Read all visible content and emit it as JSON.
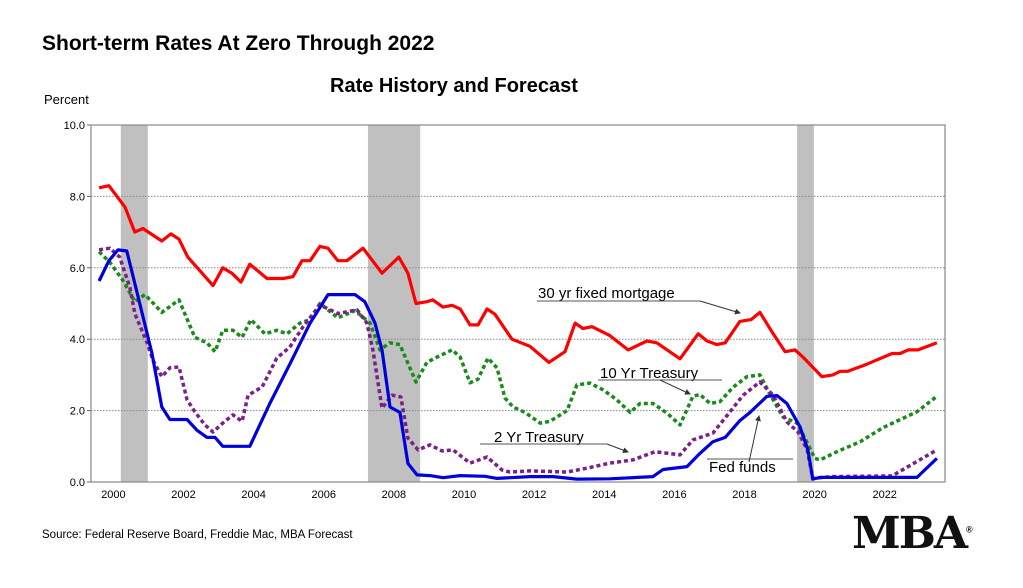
{
  "title": "Short-term Rates At Zero Through 2022",
  "subtitle": "Rate History and Forecast",
  "source": "Source: Federal Reserve Board, Freddie Mac, MBA Forecast",
  "logo": {
    "text": "MBA",
    "mark": "®"
  },
  "chart_data": {
    "type": "line",
    "title": "Rate History and Forecast",
    "ylabel": "Percent",
    "xlabel": "",
    "ylim": [
      0,
      10
    ],
    "xlim": [
      1999.86,
      2024.22
    ],
    "grid": "horizontal dotted",
    "yticks": [
      "0.0",
      "2.0",
      "4.0",
      "6.0",
      "8.0",
      "10.0"
    ],
    "xticks": [
      "2000",
      "2002",
      "2004",
      "2006",
      "2008",
      "2010",
      "2012",
      "2014",
      "2016",
      "2018",
      "2020",
      "2022"
    ],
    "recessions": [
      [
        2000.71,
        2001.48
      ],
      [
        2007.76,
        2009.25
      ],
      [
        2020.0,
        2020.48
      ]
    ],
    "series": [
      {
        "name": "30 yr fixed mortgage",
        "color": "#ff0000",
        "style": "solid",
        "x": [
          2000.09,
          2000.37,
          2000.83,
          2001.11,
          2001.34,
          2001.88,
          2002.14,
          2002.37,
          2002.62,
          2003.34,
          2003.62,
          2003.88,
          2004.14,
          2004.39,
          2004.88,
          2005.34,
          2005.62,
          2005.88,
          2006.11,
          2006.39,
          2006.62,
          2006.9,
          2007.16,
          2007.62,
          2008.16,
          2008.64,
          2008.9,
          2009.13,
          2009.44,
          2009.61,
          2009.9,
          2010.16,
          2010.39,
          2010.67,
          2010.9,
          2011.16,
          2011.38,
          2011.87,
          2012.38,
          2012.92,
          2013.38,
          2013.67,
          2013.89,
          2014.15,
          2014.66,
          2015.18,
          2015.72,
          2016.0,
          2016.66,
          2017.18,
          2017.43,
          2017.72,
          2017.95,
          2018.37,
          2018.69,
          2018.94,
          2019.32,
          2019.66,
          2019.94,
          2020.17,
          2020.71,
          2021.02,
          2021.23,
          2021.45,
          2021.99,
          2022.71,
          2022.94,
          2023.17,
          2023.45,
          2023.99
        ],
        "y": [
          8.24,
          8.3,
          7.7,
          7.0,
          7.1,
          6.75,
          6.95,
          6.8,
          6.3,
          5.5,
          6.0,
          5.85,
          5.6,
          6.1,
          5.7,
          5.7,
          5.75,
          6.2,
          6.2,
          6.6,
          6.55,
          6.2,
          6.2,
          6.55,
          5.85,
          6.3,
          5.85,
          5.0,
          5.05,
          5.1,
          4.9,
          4.95,
          4.85,
          4.4,
          4.4,
          4.85,
          4.7,
          4.0,
          3.8,
          3.35,
          3.65,
          4.45,
          4.3,
          4.35,
          4.1,
          3.7,
          3.95,
          3.9,
          3.45,
          4.15,
          3.95,
          3.85,
          3.9,
          4.5,
          4.55,
          4.75,
          4.15,
          3.65,
          3.7,
          3.5,
          2.95,
          3.0,
          3.1,
          3.1,
          3.3,
          3.6,
          3.6,
          3.7,
          3.7,
          3.9
        ]
      },
      {
        "name": "10 Yr Treasury",
        "color": "#1a8a1a",
        "style": "dotted",
        "x": [
          2000.09,
          2000.4,
          2000.77,
          2001.11,
          2001.4,
          2001.88,
          2002.37,
          2002.82,
          2003.17,
          2003.4,
          2003.62,
          2003.91,
          2004.17,
          2004.42,
          2004.82,
          2005.16,
          2005.45,
          2005.82,
          2006.11,
          2006.39,
          2006.9,
          2007.39,
          2007.82,
          2008.1,
          2008.39,
          2008.67,
          2009.13,
          2009.44,
          2009.73,
          2010.16,
          2010.39,
          2010.67,
          2010.9,
          2011.18,
          2011.44,
          2011.67,
          2011.9,
          2012.24,
          2012.67,
          2012.95,
          2013.44,
          2013.72,
          2014.09,
          2014.47,
          2014.86,
          2015.24,
          2015.52,
          2015.89,
          2016.29,
          2016.66,
          2017.03,
          2017.23,
          2017.52,
          2017.8,
          2018.17,
          2018.57,
          2018.94,
          2019.23,
          2019.6,
          2020.0,
          2020.29,
          2020.51,
          2020.66,
          2021.14,
          2021.8,
          2022.45,
          2023.42,
          2023.99
        ],
        "y": [
          6.45,
          6.15,
          5.65,
          5.05,
          5.25,
          4.75,
          5.1,
          4.05,
          3.9,
          3.65,
          4.25,
          4.25,
          4.05,
          4.55,
          4.15,
          4.25,
          4.15,
          4.45,
          4.55,
          5.0,
          4.6,
          4.8,
          4.45,
          3.7,
          3.9,
          3.85,
          2.8,
          3.35,
          3.5,
          3.7,
          3.5,
          2.78,
          2.88,
          3.47,
          3.2,
          2.35,
          2.1,
          1.95,
          1.65,
          1.7,
          2.0,
          2.72,
          2.77,
          2.58,
          2.3,
          1.95,
          2.2,
          2.2,
          1.93,
          1.6,
          2.4,
          2.45,
          2.2,
          2.25,
          2.65,
          2.95,
          3.0,
          2.45,
          1.82,
          1.65,
          1.1,
          0.66,
          0.62,
          0.85,
          1.13,
          1.52,
          1.97,
          2.4
        ]
      },
      {
        "name": "2 Yr Treasury",
        "color": "#7b1f8c",
        "style": "dotted",
        "x": [
          2000.09,
          2000.4,
          2000.68,
          2000.97,
          2001.11,
          2001.46,
          2001.63,
          2001.88,
          2002.11,
          2002.37,
          2002.6,
          2002.82,
          2003.11,
          2003.34,
          2003.62,
          2003.91,
          2004.17,
          2004.34,
          2004.74,
          2005.16,
          2005.53,
          2005.91,
          2006.39,
          2006.9,
          2007.45,
          2007.73,
          2007.9,
          2008.16,
          2008.45,
          2008.7,
          2008.9,
          2009.19,
          2009.53,
          2009.87,
          2010.19,
          2010.67,
          2011.16,
          2011.58,
          2011.81,
          2012.38,
          2013.44,
          2014.01,
          2014.66,
          2015.32,
          2015.95,
          2016.66,
          2017.03,
          2017.6,
          2018.09,
          2018.46,
          2018.94,
          2019.32,
          2019.71,
          2020.03,
          2020.29,
          2020.45,
          2021.02,
          2022.71,
          2023.99
        ],
        "y": [
          6.5,
          6.55,
          6.3,
          5.45,
          4.72,
          3.9,
          3.4,
          2.95,
          3.2,
          3.22,
          2.3,
          1.97,
          1.6,
          1.4,
          1.65,
          1.88,
          1.7,
          2.43,
          2.66,
          3.47,
          3.78,
          4.35,
          4.96,
          4.72,
          4.82,
          4.45,
          3.7,
          2.07,
          2.43,
          2.38,
          1.23,
          0.9,
          1.04,
          0.87,
          0.9,
          0.53,
          0.7,
          0.34,
          0.28,
          0.31,
          0.28,
          0.39,
          0.53,
          0.62,
          0.85,
          0.76,
          1.18,
          1.37,
          1.97,
          2.43,
          2.8,
          2.43,
          1.68,
          1.4,
          0.9,
          0.1,
          0.15,
          0.17,
          0.9
        ]
      },
      {
        "name": "Fed funds",
        "color": "#0000dd",
        "style": "solid",
        "x": [
          2000.09,
          2000.37,
          2000.63,
          2000.88,
          2001.2,
          2001.6,
          2001.88,
          2002.11,
          2002.6,
          2002.88,
          2003.17,
          2003.4,
          2003.62,
          2004.39,
          2004.96,
          2005.53,
          2006.11,
          2006.62,
          2007.39,
          2007.67,
          2007.96,
          2008.16,
          2008.39,
          2008.67,
          2008.9,
          2009.16,
          2009.53,
          2009.9,
          2010.39,
          2011.1,
          2011.44,
          2012.38,
          2013.04,
          2013.72,
          2014.66,
          2015.89,
          2016.18,
          2016.86,
          2017.23,
          2017.6,
          2017.95,
          2018.37,
          2018.66,
          2019.14,
          2019.43,
          2019.71,
          2020.08,
          2020.31,
          2020.45,
          2020.66,
          2023.42,
          2023.99
        ],
        "y": [
          5.63,
          6.2,
          6.5,
          6.47,
          5.2,
          3.6,
          2.1,
          1.75,
          1.75,
          1.45,
          1.25,
          1.25,
          1.0,
          1.0,
          2.2,
          3.3,
          4.45,
          5.25,
          5.25,
          5.05,
          4.45,
          3.7,
          2.1,
          1.95,
          0.52,
          0.2,
          0.18,
          0.12,
          0.18,
          0.16,
          0.1,
          0.15,
          0.15,
          0.08,
          0.09,
          0.15,
          0.35,
          0.43,
          0.8,
          1.13,
          1.25,
          1.72,
          1.95,
          2.4,
          2.42,
          2.2,
          1.55,
          0.9,
          0.08,
          0.13,
          0.13,
          0.66
        ]
      }
    ],
    "annotations": [
      "30 yr fixed mortgage",
      "10 Yr Treasury",
      "2 Yr Treasury",
      "Fed funds"
    ]
  }
}
